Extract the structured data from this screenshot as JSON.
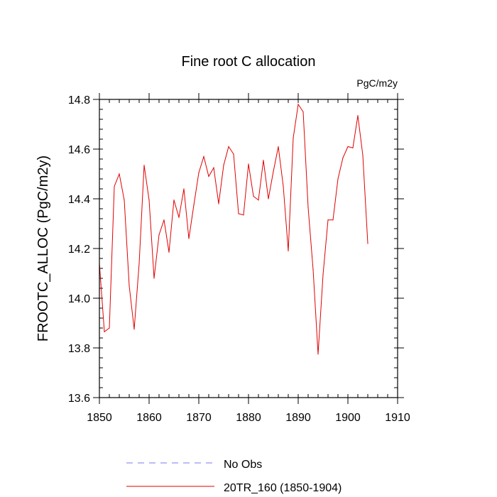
{
  "chart_data": {
    "type": "line",
    "title": "Fine root C allocation",
    "units_label": "PgC/m2y",
    "xlabel": "",
    "ylabel": "FROOTC_ALLOC  (PgC/m2y)",
    "xlim": [
      1850,
      1910
    ],
    "ylim": [
      13.6,
      14.8
    ],
    "x_major_ticks": [
      1850,
      1860,
      1870,
      1880,
      1890,
      1900,
      1910
    ],
    "x_tick_labels": [
      "1850",
      "1860",
      "1870",
      "1880",
      "1890",
      "1900",
      "1910"
    ],
    "x_minor_step": 2,
    "y_major_ticks": [
      13.6,
      13.8,
      14.0,
      14.2,
      14.4,
      14.6,
      14.8
    ],
    "y_tick_labels": [
      "13.6",
      "13.8",
      "14.0",
      "14.2",
      "14.4",
      "14.6",
      "14.8"
    ],
    "y_minor_step": 0.04,
    "grid": false,
    "legend_position": "bottom",
    "series": [
      {
        "name": "No Obs",
        "style": "dashed",
        "color": "#7b7bf0",
        "x": [],
        "values": []
      },
      {
        "name": "20TR_160 (1850-1904)",
        "style": "solid",
        "color": "#e00000",
        "x": [
          1850,
          1851,
          1852,
          1853,
          1854,
          1855,
          1856,
          1857,
          1858,
          1859,
          1860,
          1861,
          1862,
          1863,
          1864,
          1865,
          1866,
          1867,
          1868,
          1869,
          1870,
          1871,
          1872,
          1873,
          1874,
          1875,
          1876,
          1877,
          1878,
          1879,
          1880,
          1881,
          1882,
          1883,
          1884,
          1885,
          1886,
          1887,
          1888,
          1889,
          1890,
          1891,
          1892,
          1893,
          1894,
          1895,
          1896,
          1897,
          1898,
          1899,
          1900,
          1901,
          1902,
          1903,
          1904
        ],
        "values": [
          14.14,
          13.865,
          13.88,
          14.45,
          14.5,
          14.395,
          14.05,
          13.875,
          14.14,
          14.535,
          14.395,
          14.08,
          14.255,
          14.315,
          14.185,
          14.395,
          14.325,
          14.44,
          14.24,
          14.375,
          14.505,
          14.57,
          14.49,
          14.525,
          14.38,
          14.535,
          14.61,
          14.58,
          14.34,
          14.335,
          14.54,
          14.41,
          14.395,
          14.555,
          14.4,
          14.51,
          14.61,
          14.45,
          14.19,
          14.645,
          14.78,
          14.75,
          14.365,
          14.115,
          13.775,
          14.095,
          14.315,
          14.315,
          14.48,
          14.565,
          14.61,
          14.605,
          14.735,
          14.575,
          14.22
        ]
      }
    ]
  }
}
